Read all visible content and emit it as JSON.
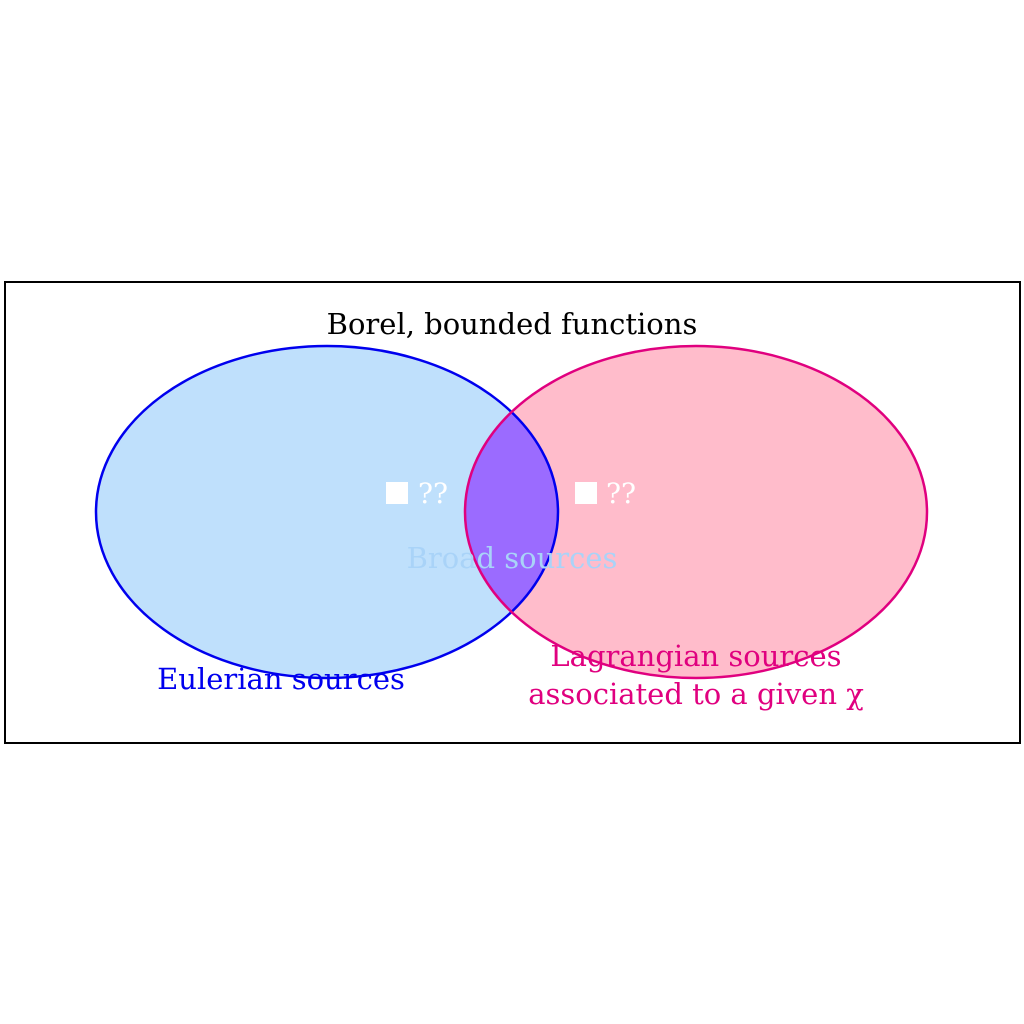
{
  "diagram": {
    "title": "Borel, bounded functions",
    "sets": [
      {
        "name": "eulerian",
        "label": "Eulerian sources",
        "color": "#0000ee",
        "fill": "#bfe0fc"
      },
      {
        "name": "lagrangian",
        "label_line1": "Lagrangian sources",
        "label_line2": "associated to a given χ",
        "color": "#e0007f",
        "fill": "#ffbccb"
      }
    ],
    "intersection": {
      "label": "Broad sources",
      "fill": "#9b6bff",
      "label_color": "#a9d3f8"
    },
    "markers": [
      {
        "label": "??"
      },
      {
        "label": "??"
      }
    ]
  }
}
